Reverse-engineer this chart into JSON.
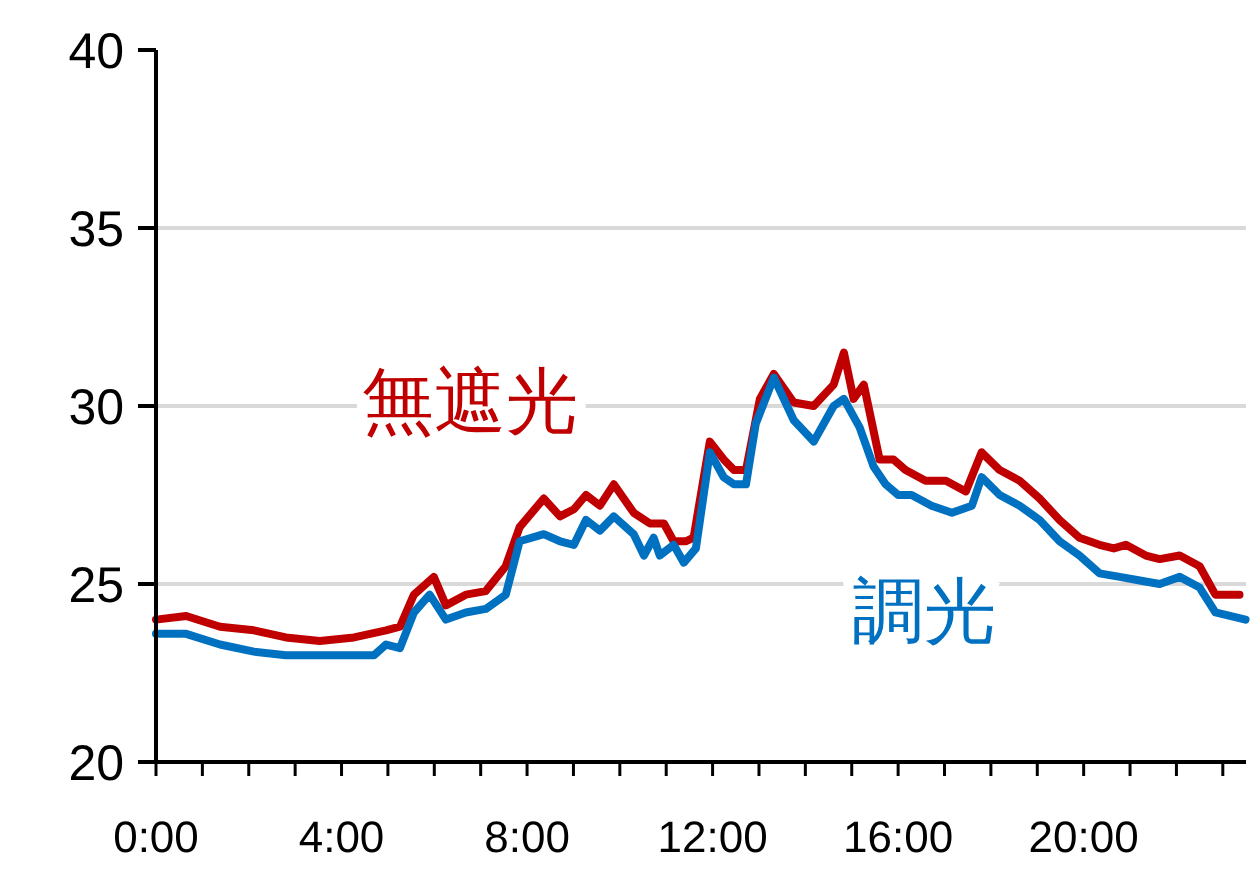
{
  "chart_data": {
    "type": "line",
    "xlim": [
      0,
      23.5
    ],
    "ylim": [
      20,
      40
    ],
    "yticks": [
      20,
      25,
      30,
      35,
      40
    ],
    "xticks": [
      {
        "value": 0,
        "label": "0:00"
      },
      {
        "value": 1,
        "label": null
      },
      {
        "value": 2,
        "label": null
      },
      {
        "value": 3,
        "label": null
      },
      {
        "value": 4,
        "label": "4:00"
      },
      {
        "value": 5,
        "label": null
      },
      {
        "value": 6,
        "label": null
      },
      {
        "value": 7,
        "label": null
      },
      {
        "value": 8,
        "label": "8:00"
      },
      {
        "value": 9,
        "label": null
      },
      {
        "value": 10,
        "label": null
      },
      {
        "value": 11,
        "label": null
      },
      {
        "value": 12,
        "label": "12:00"
      },
      {
        "value": 13,
        "label": null
      },
      {
        "value": 14,
        "label": null
      },
      {
        "value": 15,
        "label": null
      },
      {
        "value": 16,
        "label": "16:00"
      },
      {
        "value": 17,
        "label": null
      },
      {
        "value": 18,
        "label": null
      },
      {
        "value": 19,
        "label": null
      },
      {
        "value": 20,
        "label": "20:00"
      },
      {
        "value": 21,
        "label": null
      },
      {
        "value": 22,
        "label": null
      },
      {
        "value": 23,
        "label": null
      }
    ],
    "grid": "y",
    "legend": false,
    "marker": "none",
    "line_style": "solid",
    "series": [
      {
        "name": "無遮光",
        "color": "#c00000",
        "x": [
          0,
          0.65,
          1.38,
          2.11,
          2.8,
          3.53,
          4.27,
          4.96,
          5.26,
          5.56,
          5.99,
          6.25,
          6.68,
          7.11,
          7.54,
          7.84,
          8.36,
          8.71,
          9.01,
          9.27,
          9.57,
          9.87,
          10.3,
          10.65,
          10.95,
          11.16,
          11.42,
          11.59,
          11.94,
          12.24,
          12.46,
          12.72,
          13.02,
          13.32,
          13.75,
          14.18,
          14.61,
          14.83,
          15.04,
          15.26,
          15.6,
          15.9,
          16.16,
          16.59,
          17.03,
          17.46,
          17.8,
          18.19,
          18.62,
          19.05,
          19.48,
          19.91,
          20.34,
          20.65,
          20.91,
          21.34,
          21.64,
          22.07,
          22.5,
          22.84,
          23.36
        ],
        "values": [
          24.0,
          24.1,
          23.8,
          23.7,
          23.5,
          23.4,
          23.5,
          23.7,
          23.8,
          24.7,
          25.2,
          24.4,
          24.7,
          24.8,
          25.5,
          26.6,
          27.4,
          26.9,
          27.1,
          27.5,
          27.2,
          27.8,
          27.0,
          26.7,
          26.7,
          26.2,
          26.2,
          26.3,
          29.0,
          28.5,
          28.2,
          28.2,
          30.2,
          30.9,
          30.1,
          30.0,
          30.6,
          31.5,
          30.2,
          30.6,
          28.5,
          28.5,
          28.2,
          27.9,
          27.9,
          27.6,
          28.7,
          28.2,
          27.9,
          27.4,
          26.8,
          26.3,
          26.1,
          26.0,
          26.1,
          25.8,
          25.7,
          25.8,
          25.5,
          24.7,
          24.7
        ]
      },
      {
        "name": "調光",
        "color": "#0070c0",
        "x": [
          0,
          0.65,
          1.38,
          2.11,
          2.8,
          3.53,
          4.27,
          4.7,
          4.96,
          5.26,
          5.56,
          5.9,
          6.25,
          6.68,
          7.11,
          7.54,
          7.84,
          8.36,
          8.71,
          9.01,
          9.27,
          9.57,
          9.87,
          10.3,
          10.52,
          10.73,
          10.86,
          11.16,
          11.38,
          11.64,
          11.94,
          12.24,
          12.46,
          12.72,
          12.93,
          13.32,
          13.75,
          14.18,
          14.61,
          14.83,
          15.17,
          15.47,
          15.73,
          16.0,
          16.29,
          16.72,
          17.16,
          17.59,
          17.8,
          18.19,
          18.62,
          19.05,
          19.48,
          19.91,
          20.34,
          20.78,
          21.21,
          21.64,
          22.07,
          22.5,
          22.84,
          23.49
        ],
        "values": [
          23.6,
          23.6,
          23.3,
          23.1,
          23.0,
          23.0,
          23.0,
          23.0,
          23.3,
          23.2,
          24.2,
          24.7,
          24.0,
          24.2,
          24.3,
          24.7,
          26.2,
          26.4,
          26.2,
          26.1,
          26.8,
          26.5,
          26.9,
          26.4,
          25.8,
          26.3,
          25.8,
          26.1,
          25.6,
          26.0,
          28.7,
          28.0,
          27.8,
          27.8,
          29.5,
          30.8,
          29.6,
          29.0,
          30.0,
          30.2,
          29.4,
          28.3,
          27.8,
          27.5,
          27.5,
          27.2,
          27.0,
          27.2,
          28.0,
          27.5,
          27.2,
          26.8,
          26.2,
          25.8,
          25.3,
          25.2,
          25.1,
          25.0,
          25.2,
          24.9,
          24.2,
          24.0
        ]
      }
    ]
  }
}
